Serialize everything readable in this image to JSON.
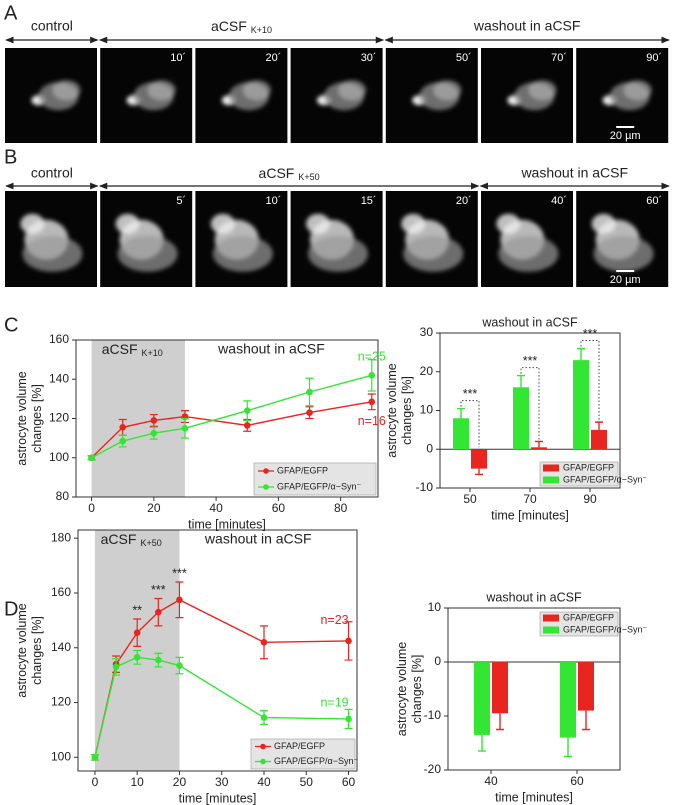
{
  "image_panels": [
    {
      "panel": "A",
      "control": "control",
      "treatment": "aCSF",
      "treatment_sub": "K+10",
      "washout": "washout in aCSF",
      "times": [
        "10´",
        "20´",
        "30´",
        "50´",
        "70´",
        "90´"
      ],
      "scale_bar": "20 µm"
    },
    {
      "panel": "B",
      "control": "control",
      "treatment": "aCSF",
      "treatment_sub": "K+50",
      "washout": "washout in aCSF",
      "times": [
        "5´",
        "10´",
        "15´",
        "20´",
        "40´",
        "60´"
      ],
      "scale_bar": "20 µm"
    }
  ],
  "chart_data": [
    {
      "type": "line",
      "panel": "C",
      "y_label": [
        "astrocyte volume",
        "changes [%]"
      ],
      "x_label": "time [minutes]",
      "shade": [
        0,
        30
      ],
      "shade_label": "aCSF",
      "shade_sub": "K+10",
      "after_label": "washout in aCSF",
      "x": [
        0,
        10,
        20,
        30,
        50,
        70,
        90
      ],
      "series": [
        {
          "name": "GFAP/EGFP",
          "color": "#e8251f",
          "values": [
            100,
            115.5,
            119,
            121,
            116.5,
            123,
            128.5
          ],
          "errors": [
            1,
            4,
            3,
            3,
            3,
            3,
            4
          ],
          "n_label": "n=16"
        },
        {
          "name": "GFAP/EGFP/α−Syn⁻",
          "color": "#33e633",
          "values": [
            100,
            108.5,
            112.5,
            115,
            124,
            133.5,
            142
          ],
          "errors": [
            1,
            3,
            3,
            5,
            5,
            7,
            8
          ],
          "n_label": "n=25"
        }
      ],
      "xlim": [
        -5,
        92
      ],
      "xticks": [
        0,
        20,
        40,
        60,
        80
      ],
      "ylim": [
        80,
        160
      ],
      "yticks": [
        80,
        100,
        120,
        140,
        160
      ],
      "legend": "lower right"
    },
    {
      "type": "bar",
      "title": "washout in aCSF",
      "y_label": [
        "astrocyte volume",
        "changes [%]"
      ],
      "x_label": "time [minutes]",
      "categories": [
        "50",
        "70",
        "90"
      ],
      "series": [
        {
          "name": "GFAP/EGFP",
          "color": "#e8251f",
          "values": [
            -5,
            0.5,
            5
          ],
          "errors": [
            1.5,
            1.5,
            2
          ]
        },
        {
          "name": "GFAP/EGFP/α−Syn⁻",
          "color": "#33e633",
          "values": [
            8,
            16,
            23
          ],
          "errors": [
            2.5,
            3,
            3
          ]
        }
      ],
      "significance": [
        "***",
        "***",
        "***"
      ],
      "ylim": [
        -10,
        30
      ],
      "yticks": [
        -10,
        0,
        10,
        20,
        30
      ],
      "legend": "lower right"
    },
    {
      "type": "line",
      "panel": "D",
      "y_label": [
        "astrocyte volume",
        "changes [%]"
      ],
      "x_label": "time [minutes]",
      "shade": [
        0,
        20
      ],
      "shade_label": "aCSF",
      "shade_sub": "K+50",
      "after_label": "washout in aCSF",
      "x": [
        0,
        5,
        10,
        15,
        20,
        40,
        60
      ],
      "series": [
        {
          "name": "GFAP/EGFP",
          "color": "#e8251f",
          "values": [
            100,
            134,
            145.5,
            153,
            157.5,
            142,
            142.5
          ],
          "errors": [
            1,
            3,
            5,
            5,
            6.5,
            6,
            7
          ],
          "n_label": "n=23"
        },
        {
          "name": "GFAP/EGFP/α−Syn⁻",
          "color": "#33e633",
          "values": [
            100,
            133,
            136.5,
            135.5,
            133.5,
            114.5,
            114
          ],
          "errors": [
            1,
            3,
            2.5,
            2.5,
            3,
            2.5,
            3.5
          ],
          "n_label": "n=19"
        }
      ],
      "stars": [
        null,
        null,
        "**",
        "***",
        "***",
        null,
        null
      ],
      "xlim": [
        -4,
        62
      ],
      "xticks": [
        0,
        10,
        20,
        30,
        40,
        50,
        60
      ],
      "ylim": [
        95,
        183
      ],
      "yticks": [
        100,
        120,
        140,
        160,
        180
      ],
      "legend": "lower right"
    },
    {
      "type": "bar",
      "title": "washout in aCSF",
      "y_label": [
        "astrocyte volume",
        "changes [%]"
      ],
      "x_label": "time [minutes]",
      "categories": [
        "40",
        "60"
      ],
      "series": [
        {
          "name": "GFAP/EGFP",
          "color": "#e8251f",
          "values": [
            -9.5,
            -9
          ],
          "errors": [
            3,
            3.5
          ]
        },
        {
          "name": "GFAP/EGFP/α−Syn⁻",
          "color": "#33e633",
          "values": [
            -13.5,
            -14
          ],
          "errors": [
            3,
            3.5
          ]
        }
      ],
      "ylim": [
        -20,
        10
      ],
      "yticks": [
        -20,
        -10,
        0,
        10
      ],
      "legend": "upper right"
    }
  ]
}
